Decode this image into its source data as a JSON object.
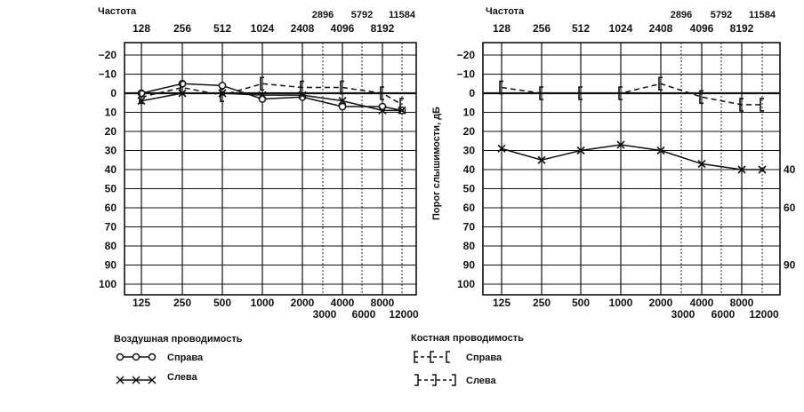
{
  "chart_data": [
    {
      "type": "line",
      "panel": "left",
      "freq_label": "Частота",
      "top_row1": [
        "2896",
        "5792",
        "11584"
      ],
      "top_row2": [
        "128",
        "256",
        "512",
        "1024",
        "2408",
        "4096",
        "8192"
      ],
      "bottom_row1": [
        "125",
        "250",
        "500",
        "1000",
        "2000",
        "4000",
        "8000"
      ],
      "bottom_row2": [
        "3000",
        "6000",
        "12000"
      ],
      "y_ticks": [
        "−20",
        "−10",
        "0",
        "10",
        "20",
        "30",
        "40",
        "50",
        "60",
        "70",
        "80",
        "90",
        "100"
      ],
      "ylim": [
        -20,
        100
      ],
      "y_inverted": true,
      "grid": true,
      "x": [
        125,
        250,
        500,
        1000,
        2000,
        3000,
        4000,
        6000,
        8000,
        12000
      ],
      "series": [
        {
          "marker": "circle",
          "line": "solid",
          "x": [
            125,
            250,
            500,
            1000,
            2000,
            4000,
            8000,
            12000
          ],
          "values": [
            0,
            -5,
            -4,
            3,
            2,
            7,
            7,
            9
          ]
        },
        {
          "marker": "cross",
          "line": "solid",
          "x": [
            125,
            250,
            500,
            1000,
            2000,
            4000,
            8000,
            12000
          ],
          "values": [
            4,
            0,
            0,
            1,
            1,
            4,
            9,
            9
          ]
        },
        {
          "marker": "bracket-left",
          "line": "dashed",
          "x": [
            125,
            250,
            500,
            1000,
            2000,
            4000,
            8000,
            12000
          ],
          "values": [
            2,
            -3,
            1,
            -5,
            -3,
            -3,
            0,
            6
          ]
        }
      ]
    },
    {
      "type": "line",
      "panel": "right",
      "freq_label": "Частота",
      "y_axis_label": "Порог слышимости, дБ",
      "top_row1": [
        "2896",
        "5792",
        "11584"
      ],
      "top_row2": [
        "128",
        "256",
        "512",
        "1024",
        "2408",
        "4096",
        "8192"
      ],
      "bottom_row1": [
        "125",
        "250",
        "500",
        "1000",
        "2000",
        "4000",
        "8000"
      ],
      "bottom_row2": [
        "3000",
        "6000",
        "12000"
      ],
      "y_ticks": [
        "−20",
        "−10",
        "0",
        "10",
        "20",
        "30",
        "40",
        "50",
        "60",
        "70",
        "80",
        "90",
        "100"
      ],
      "right_labels": [
        "40",
        "60",
        "90"
      ],
      "ylim": [
        -20,
        100
      ],
      "y_inverted": true,
      "grid": true,
      "x": [
        125,
        250,
        500,
        1000,
        2000,
        3000,
        4000,
        6000,
        8000,
        12000
      ],
      "series": [
        {
          "marker": "bracket-left",
          "line": "dashed",
          "x": [
            125,
            250,
            500,
            1000,
            2000,
            4000,
            8000,
            12000
          ],
          "values": [
            -3,
            0,
            0,
            0,
            -5,
            2,
            6,
            6
          ]
        },
        {
          "marker": "cross",
          "line": "solid",
          "x": [
            125,
            250,
            500,
            1000,
            2000,
            4000,
            8000,
            12000
          ],
          "values": [
            29,
            35,
            30,
            27,
            30,
            37,
            40,
            40
          ]
        }
      ]
    }
  ],
  "legend": {
    "air_title": "Воздушная проводимость",
    "air_right": "Справа",
    "air_left": "Слева",
    "bone_title": "Костная  проводимость",
    "bone_right": "Справа",
    "bone_left": "Слева"
  },
  "colors": {
    "ink": "#111111",
    "grid": "#111111",
    "background": "#ffffff"
  }
}
